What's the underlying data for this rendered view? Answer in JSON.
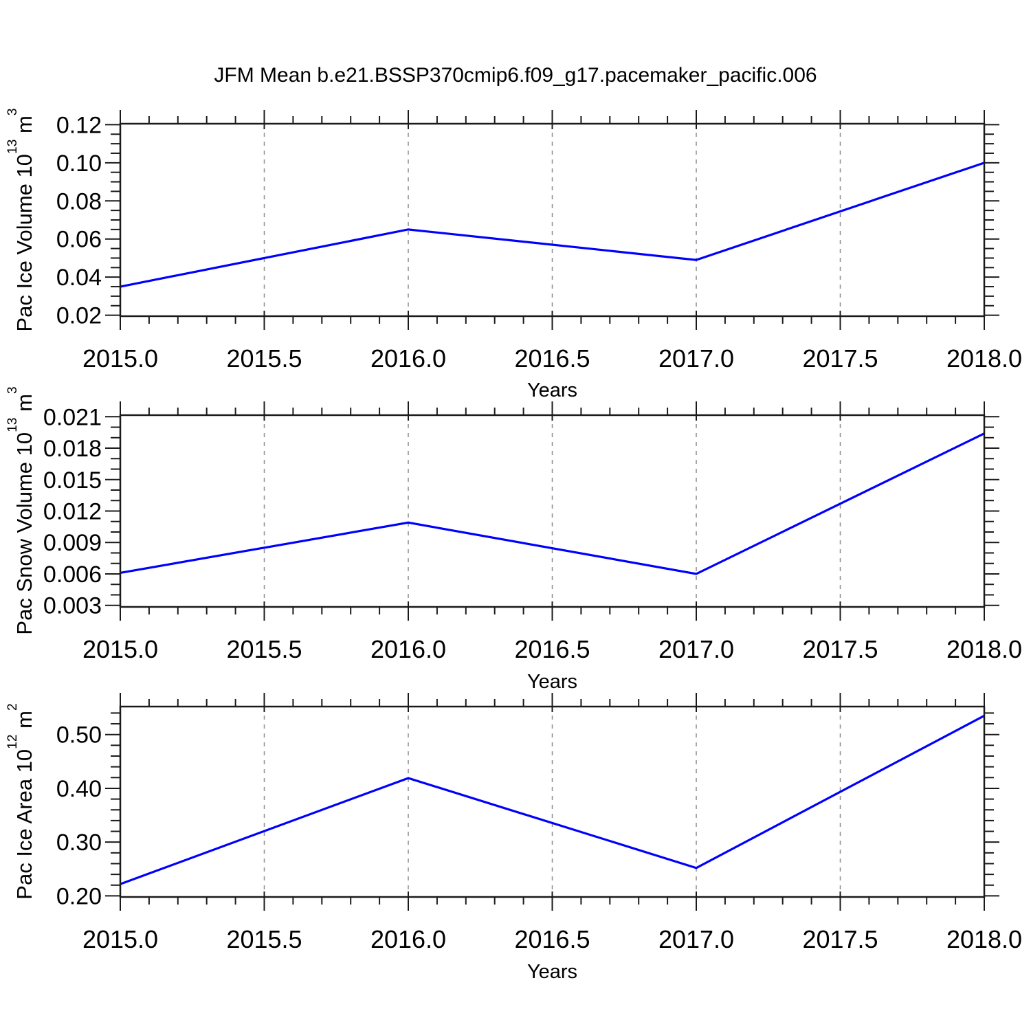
{
  "page_title": "JFM Mean b.e21.BSSP370cmip6.f09_g17.pacemaker_pacific.006",
  "styles": {
    "line_color": "#0000ff",
    "grid_color": "#8c8c8c",
    "frame_color": "#1a1a1a",
    "text_color": "#000000",
    "background": "#ffffff"
  },
  "chart_data": [
    {
      "type": "line",
      "title": "JFM Mean b.e21.BSSP370cmip6.f09_g17.pacemaker_pacific.006",
      "series_color": "#0000ff",
      "ylabel": {
        "prefix": "Pac Ice Volume 10",
        "exponent": "13",
        "unit": " m",
        "unit_exponent": "3"
      },
      "xlabel": "Years",
      "x": [
        2015.0,
        2016.0,
        2017.0,
        2018.0
      ],
      "values": [
        0.035,
        0.065,
        0.049,
        0.1
      ],
      "xlim": [
        2015.0,
        2018.0
      ],
      "ylim": [
        0.0195,
        0.1205
      ],
      "xticks": [
        2015.0,
        2015.5,
        2016.0,
        2016.5,
        2017.0,
        2017.5,
        2018.0
      ],
      "xtick_labels": [
        "2015.0",
        "2015.5",
        "2016.0",
        "2016.5",
        "2017.0",
        "2017.5",
        "2018.0"
      ],
      "yticks": [
        0.02,
        0.04,
        0.06,
        0.08,
        0.1,
        0.12
      ],
      "ytick_labels": [
        "0.02",
        "0.04",
        "0.06",
        "0.08",
        "0.10",
        "0.12"
      ],
      "minor_x_step": 0.1,
      "minor_y_step": 0.005,
      "gridlines_x": [
        2015.5,
        2016.0,
        2016.5,
        2017.0,
        2017.5
      ],
      "grid": "x-dashed",
      "legend": "none"
    },
    {
      "type": "line",
      "title": "",
      "series_color": "#0000ff",
      "ylabel": {
        "prefix": "Pac Snow Volume 10",
        "exponent": "13",
        "unit": " m",
        "unit_exponent": "3"
      },
      "xlabel": "Years",
      "x": [
        2015.0,
        2016.0,
        2017.0,
        2018.0
      ],
      "values": [
        0.0061,
        0.0109,
        0.006,
        0.0194
      ],
      "xlim": [
        2015.0,
        2018.0
      ],
      "ylim": [
        0.00285,
        0.02115
      ],
      "xticks": [
        2015.0,
        2015.5,
        2016.0,
        2016.5,
        2017.0,
        2017.5,
        2018.0
      ],
      "xtick_labels": [
        "2015.0",
        "2015.5",
        "2016.0",
        "2016.5",
        "2017.0",
        "2017.5",
        "2018.0"
      ],
      "yticks": [
        0.003,
        0.006,
        0.009,
        0.012,
        0.015,
        0.018,
        0.021
      ],
      "ytick_labels": [
        "0.003",
        "0.006",
        "0.009",
        "0.012",
        "0.015",
        "0.018",
        "0.021"
      ],
      "minor_x_step": 0.1,
      "minor_y_step": 0.001,
      "gridlines_x": [
        2015.5,
        2016.0,
        2016.5,
        2017.0,
        2017.5
      ],
      "grid": "x-dashed",
      "legend": "none"
    },
    {
      "type": "line",
      "title": "",
      "series_color": "#0000ff",
      "ylabel": {
        "prefix": "Pac Ice Area 10",
        "exponent": "12",
        "unit": " m",
        "unit_exponent": "2"
      },
      "xlabel": "Years",
      "x": [
        2015.0,
        2016.0,
        2017.0,
        2018.0
      ],
      "values": [
        0.222,
        0.419,
        0.252,
        0.535
      ],
      "xlim": [
        2015.0,
        2018.0
      ],
      "ylim": [
        0.198,
        0.552
      ],
      "xticks": [
        2015.0,
        2015.5,
        2016.0,
        2016.5,
        2017.0,
        2017.5,
        2018.0
      ],
      "xtick_labels": [
        "2015.0",
        "2015.5",
        "2016.0",
        "2016.5",
        "2017.0",
        "2017.5",
        "2018.0"
      ],
      "yticks": [
        0.2,
        0.3,
        0.4,
        0.5
      ],
      "ytick_labels": [
        "0.20",
        "0.30",
        "0.40",
        "0.50"
      ],
      "minor_x_step": 0.1,
      "minor_y_step": 0.02,
      "gridlines_x": [
        2015.5,
        2016.0,
        2016.5,
        2017.0,
        2017.5
      ],
      "grid": "x-dashed",
      "legend": "none"
    }
  ]
}
